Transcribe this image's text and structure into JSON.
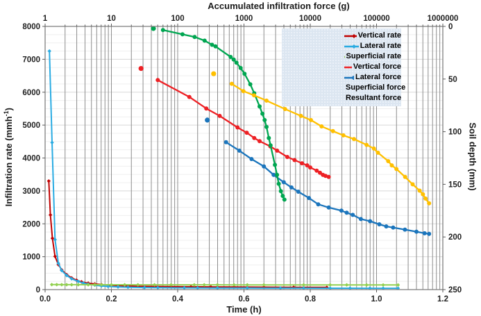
{
  "chart_data": {
    "type": "line",
    "title": "Accumulated infiltration force (g)",
    "legend_position": "top-right-inside",
    "grid": {
      "horizontal_major_step": 1000,
      "horizontal_minor_step": 250,
      "vertical": "log-minor-ticks-of-top-axis"
    },
    "axes": {
      "top": {
        "label": "Accumulated infiltration force (g)",
        "scale": "log",
        "min": 1,
        "max": 1000000,
        "ticks": [
          "1",
          "10",
          "100",
          "1000",
          "10000",
          "100000",
          "1000000"
        ]
      },
      "bottom": {
        "label": "Time (h)",
        "scale": "linear",
        "min": 0,
        "max": 1.2,
        "ticks": [
          "0.0",
          "0.2",
          "0.4",
          "0.6",
          "0.8",
          "1.0",
          "1.2"
        ]
      },
      "left": {
        "label_prefix": "Infiltration rate (mmh",
        "label_sup": "-1",
        "label_suffix": ")",
        "min": 0,
        "max": 8000,
        "ticks": [
          "0",
          "1000",
          "2000",
          "3000",
          "4000",
          "5000",
          "6000",
          "7000",
          "8000"
        ]
      },
      "right": {
        "label": "Soil depth (mm)",
        "min": 0,
        "max": 250,
        "inverted": true,
        "ticks": [
          "0",
          "50",
          "100",
          "150",
          "200",
          "250"
        ]
      }
    },
    "series": [
      {
        "name": "Vertical rate",
        "color": "#C00000",
        "marker": "diamond",
        "axes": "time-rate",
        "points": [
          [
            0.011,
            3300
          ],
          [
            0.016,
            2270
          ],
          [
            0.022,
            1560
          ],
          [
            0.03,
            1010
          ],
          [
            0.04,
            760
          ],
          [
            0.05,
            600
          ],
          [
            0.065,
            455
          ],
          [
            0.08,
            355
          ],
          [
            0.095,
            285
          ],
          [
            0.11,
            235
          ],
          [
            0.13,
            195
          ],
          [
            0.15,
            172
          ],
          [
            0.17,
            152
          ],
          [
            0.2,
            132
          ],
          [
            0.24,
            114
          ],
          [
            0.28,
            102
          ],
          [
            0.33,
            95
          ],
          [
            0.38,
            90
          ],
          [
            0.44,
            86
          ],
          [
            0.5,
            82
          ],
          [
            0.57,
            78
          ],
          [
            0.66,
            74
          ],
          [
            0.75,
            70
          ],
          [
            0.85,
            67
          ]
        ]
      },
      {
        "name": "Lateral rate",
        "color": "#29ABE2",
        "marker": "diamond",
        "axes": "time-rate",
        "points": [
          [
            0.013,
            7250
          ],
          [
            0.021,
            4470
          ],
          [
            0.03,
            1520
          ],
          [
            0.04,
            800
          ],
          [
            0.05,
            580
          ],
          [
            0.065,
            430
          ],
          [
            0.08,
            330
          ],
          [
            0.1,
            250
          ],
          [
            0.115,
            200
          ],
          [
            0.13,
            165
          ],
          [
            0.15,
            135
          ],
          [
            0.17,
            112
          ],
          [
            0.19,
            96
          ],
          [
            0.22,
            82
          ],
          [
            0.25,
            72
          ],
          [
            0.3,
            62
          ],
          [
            0.34,
            57
          ],
          [
            0.42,
            53
          ],
          [
            0.46,
            51
          ],
          [
            0.52,
            49
          ],
          [
            0.61,
            47
          ],
          [
            0.71,
            45
          ],
          [
            0.78,
            44
          ],
          [
            0.86,
            43
          ],
          [
            0.92,
            42
          ],
          [
            0.98,
            41
          ],
          [
            1.02,
            40
          ],
          [
            1.065,
            40
          ]
        ]
      },
      {
        "name": "Superficial rate",
        "color": "#92D050",
        "marker": "diamond",
        "axes": "time-rate",
        "points": [
          [
            0.02,
            152
          ],
          [
            0.035,
            151
          ],
          [
            0.05,
            150
          ],
          [
            0.065,
            150
          ],
          [
            0.08,
            149
          ],
          [
            0.1,
            149
          ],
          [
            0.13,
            148
          ],
          [
            0.15,
            148
          ],
          [
            0.17,
            147
          ],
          [
            0.2,
            147
          ],
          [
            0.24,
            147
          ],
          [
            0.28,
            146
          ],
          [
            0.33,
            146
          ],
          [
            0.38,
            146
          ],
          [
            0.45,
            145
          ],
          [
            0.48,
            145
          ],
          [
            0.52,
            145
          ],
          [
            0.57,
            144
          ],
          [
            0.61,
            144
          ],
          [
            0.66,
            144
          ],
          [
            0.78,
            143
          ],
          [
            0.86,
            143
          ],
          [
            0.91,
            143
          ],
          [
            0.97,
            142
          ],
          [
            1.02,
            142
          ],
          [
            1.065,
            142
          ]
        ]
      },
      {
        "name": "Vertical force",
        "color": "#ED2024",
        "marker": "circle",
        "axes": "force-depth",
        "lead_point": [
          28,
          40
        ],
        "points": [
          [
            50,
            51
          ],
          [
            150,
            67
          ],
          [
            270,
            78
          ],
          [
            430,
            85
          ],
          [
            800,
            96
          ],
          [
            1100,
            101
          ],
          [
            1430,
            106
          ],
          [
            1720,
            109
          ],
          [
            2500,
            114
          ],
          [
            3160,
            118
          ],
          [
            4500,
            124
          ],
          [
            5800,
            127
          ],
          [
            7500,
            130
          ],
          [
            9000,
            132
          ],
          [
            10000,
            134
          ],
          [
            12500,
            137
          ],
          [
            14000,
            139
          ],
          [
            15500,
            141
          ],
          [
            17000,
            142
          ],
          [
            19000,
            143
          ]
        ]
      },
      {
        "name": "Lateral force",
        "color": "#1B75BC",
        "marker": "circle",
        "axes": "force-depth",
        "lead_point": [
          280,
          89
        ],
        "points": [
          [
            537,
            110
          ],
          [
            850,
            118
          ],
          [
            1300,
            126
          ],
          [
            2000,
            133
          ],
          [
            2800,
            141
          ],
          [
            3980,
            148
          ],
          [
            5200,
            153
          ],
          [
            6600,
            157
          ],
          [
            9550,
            163
          ],
          [
            13200,
            169
          ],
          [
            19000,
            172
          ],
          [
            29500,
            175
          ],
          [
            35500,
            177
          ],
          [
            43700,
            179
          ],
          [
            58000,
            183
          ],
          [
            80000,
            185
          ],
          [
            110000,
            188
          ],
          [
            140000,
            190
          ],
          [
            178000,
            191
          ],
          [
            268000,
            193
          ],
          [
            400000,
            195
          ],
          [
            530000,
            196.5
          ],
          [
            620000,
            197
          ]
        ]
      },
      {
        "name": "Superficial force",
        "color": "#00A651",
        "marker": "circle",
        "axes": "force-depth",
        "lead_point": [
          43,
          2
        ],
        "points": [
          [
            60,
            3.5
          ],
          [
            118,
            7.5
          ],
          [
            180,
            10
          ],
          [
            255,
            13.5
          ],
          [
            330,
            17.5
          ],
          [
            372,
            19
          ],
          [
            630,
            29
          ],
          [
            700,
            31.5
          ],
          [
            770,
            34.5
          ],
          [
            890,
            39.5
          ],
          [
            1020,
            45
          ],
          [
            1245,
            55
          ],
          [
            1430,
            63.5
          ],
          [
            1720,
            76
          ],
          [
            1900,
            83
          ],
          [
            2050,
            89
          ],
          [
            2190,
            95.5
          ],
          [
            2370,
            106
          ],
          [
            2520,
            113
          ],
          [
            2930,
            131.5
          ],
          [
            3150,
            141
          ],
          [
            3350,
            149.5
          ],
          [
            3610,
            156.5
          ],
          [
            3850,
            161
          ],
          [
            4075,
            164.5
          ]
        ]
      },
      {
        "name": "Resultant force",
        "color": "#FFC000",
        "marker": "circle",
        "axes": "force-depth",
        "lead_point": [
          349,
          45
        ],
        "points": [
          [
            654,
            54.5
          ],
          [
            980,
            61.5
          ],
          [
            1420,
            65.5
          ],
          [
            2190,
            70.5
          ],
          [
            4170,
            78.5
          ],
          [
            7240,
            85
          ],
          [
            10250,
            89
          ],
          [
            14800,
            95
          ],
          [
            22000,
            99.5
          ],
          [
            31600,
            103.5
          ],
          [
            45700,
            107
          ],
          [
            70800,
            112.5
          ],
          [
            91200,
            116
          ],
          [
            105000,
            120
          ],
          [
            150000,
            128
          ],
          [
            170000,
            132
          ],
          [
            200000,
            135.5
          ],
          [
            270000,
            143
          ],
          [
            350000,
            150
          ],
          [
            447000,
            156
          ],
          [
            501000,
            159.5
          ],
          [
            549000,
            163.5
          ],
          [
            620000,
            168
          ]
        ]
      }
    ]
  }
}
